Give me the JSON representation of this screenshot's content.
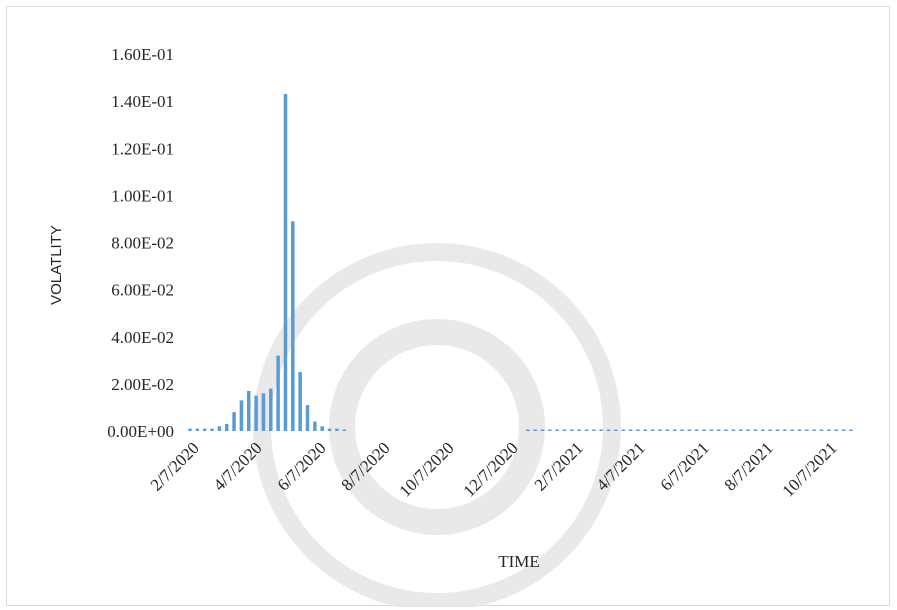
{
  "chart_data": {
    "type": "bar",
    "title": "",
    "xlabel": "TIME",
    "ylabel": "VOLATLITY",
    "ylim": [
      0,
      0.16
    ],
    "y_ticks": [
      "1.60E-01",
      "1.40E-01",
      "1.20E-01",
      "1.00E-01",
      "8.00E-02",
      "6.00E-02",
      "4.00E-02",
      "2.00E-02",
      "0.00E+00"
    ],
    "y_tick_values": [
      0.16,
      0.14,
      0.12,
      0.1,
      0.08,
      0.06,
      0.04,
      0.02,
      0.0
    ],
    "x_ticks": [
      "2/7/2020",
      "4/7/2020",
      "6/7/2020",
      "8/7/2020",
      "10/7/2020",
      "12/7/2020",
      "2/7/2021",
      "4/7/2021",
      "6/7/2021",
      "8/7/2021",
      "10/7/2021"
    ],
    "x_range": [
      "2020-02-07",
      "2021-10-31"
    ],
    "grid": false,
    "legend": "none",
    "bar_color": "#5b9bd5",
    "series": [
      {
        "dates": [
          "2020-02-07",
          "2020-02-14",
          "2020-02-21",
          "2020-02-28",
          "2020-03-06",
          "2020-03-13",
          "2020-03-20",
          "2020-03-27",
          "2020-04-03",
          "2020-04-10",
          "2020-04-17",
          "2020-04-24",
          "2020-05-01",
          "2020-05-08",
          "2020-05-15",
          "2020-05-22",
          "2020-05-29",
          "2020-06-05",
          "2020-06-12",
          "2020-06-19",
          "2020-06-26",
          "2020-07-03",
          "2020-12-25",
          "2021-01-01",
          "2021-01-08",
          "2021-01-15",
          "2021-01-22",
          "2021-01-29",
          "2021-02-05",
          "2021-02-12",
          "2021-02-19",
          "2021-02-26",
          "2021-03-05",
          "2021-03-12",
          "2021-03-19",
          "2021-03-26",
          "2021-04-02",
          "2021-04-09",
          "2021-04-16",
          "2021-04-23",
          "2021-04-30",
          "2021-05-07",
          "2021-05-14",
          "2021-05-21",
          "2021-05-28",
          "2021-06-04",
          "2021-06-11",
          "2021-06-18",
          "2021-06-25",
          "2021-07-02",
          "2021-07-09",
          "2021-07-16",
          "2021-07-23",
          "2021-07-30",
          "2021-08-06",
          "2021-08-13",
          "2021-08-20",
          "2021-08-27",
          "2021-09-03",
          "2021-09-10",
          "2021-09-17",
          "2021-09-24",
          "2021-10-01",
          "2021-10-08",
          "2021-10-15",
          "2021-10-22",
          "2021-10-29"
        ],
        "values": [
          0.001,
          0.001,
          0.001,
          0.001,
          0.002,
          0.003,
          0.008,
          0.013,
          0.017,
          0.015,
          0.016,
          0.018,
          0.032,
          0.143,
          0.089,
          0.025,
          0.011,
          0.004,
          0.002,
          0.001,
          0.001,
          0.0005,
          0.0005,
          0.0005,
          0.0005,
          0.0005,
          0.0005,
          0.0005,
          0.0005,
          0.0005,
          0.0005,
          0.0005,
          0.0005,
          0.0005,
          0.0005,
          0.0005,
          0.0005,
          0.0005,
          0.0005,
          0.0005,
          0.0005,
          0.0005,
          0.0005,
          0.0005,
          0.0005,
          0.0005,
          0.0005,
          0.0005,
          0.0005,
          0.0005,
          0.0005,
          0.0005,
          0.0005,
          0.0005,
          0.0005,
          0.0005,
          0.0005,
          0.0005,
          0.0005,
          0.0005,
          0.0005,
          0.0005,
          0.0005,
          0.0005,
          0.0005,
          0.0005,
          0.0005
        ]
      }
    ]
  }
}
